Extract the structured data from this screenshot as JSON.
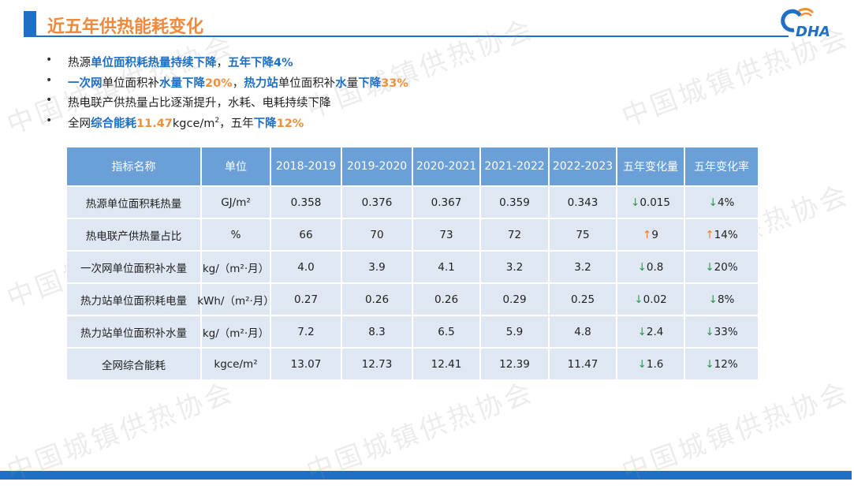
{
  "header": {
    "title": "近五年供热能耗变化",
    "logo": "DHA"
  },
  "watermark": "中国城镇供热协会",
  "bullets": [
    [
      {
        "text": "热源",
        "color": "#222"
      },
      {
        "text": "单位面积耗热量持续下降",
        "color": "#1f6fc5",
        "bold": true
      },
      {
        "text": "，",
        "color": "#222"
      },
      {
        "text": "五年下降4%",
        "color": "#1f6fc5",
        "bold": true
      }
    ],
    [
      {
        "text": "一次网",
        "color": "#1f6fc5",
        "bold": true
      },
      {
        "text": "单位面积补",
        "color": "#222"
      },
      {
        "text": "水量",
        "color": "#1f6fc5",
        "bold": true
      },
      {
        "text": "下降",
        "color": "#1f6fc5",
        "bold": true
      },
      {
        "text": "20%",
        "color": "#f0903a",
        "bold": true
      },
      {
        "text": "，",
        "color": "#222"
      },
      {
        "text": "热力站",
        "color": "#1f6fc5",
        "bold": true
      },
      {
        "text": "单位面积补",
        "color": "#222"
      },
      {
        "text": "水",
        "color": "#1f6fc5",
        "bold": true
      },
      {
        "text": "量",
        "color": "#222"
      },
      {
        "text": "下降",
        "color": "#1f6fc5",
        "bold": true
      },
      {
        "text": "33%",
        "color": "#f0903a",
        "bold": true
      }
    ],
    [
      {
        "text": "热电联产供热量占比逐渐提升，水耗、电耗持续下降",
        "color": "#222"
      }
    ],
    [
      {
        "text": "全网",
        "color": "#222"
      },
      {
        "text": "综合能耗",
        "color": "#1f6fc5",
        "bold": true
      },
      {
        "text": "11.47",
        "color": "#f0903a",
        "bold": true
      },
      {
        "text": "kgce/m",
        "color": "#222"
      },
      {
        "text": "2",
        "color": "#222",
        "sup": true
      },
      {
        "text": "，五年",
        "color": "#222"
      },
      {
        "text": "下降",
        "color": "#1f6fc5",
        "bold": true
      },
      {
        "text": "12%",
        "color": "#f0903a",
        "bold": true
      }
    ]
  ],
  "table": {
    "header": [
      "指标名称",
      "单位",
      "2018-2019",
      "2019-2020",
      "2020-2021",
      "2021-2022",
      "2022-2023",
      "五年变化量",
      "五年变化率"
    ],
    "rows": [
      [
        "热源单位面积耗热量",
        "GJ/m²",
        "0.358",
        "0.376",
        "0.367",
        "0.359",
        "0.343",
        "↓0.015",
        "↓4%"
      ],
      [
        "热电联产供热量占比",
        "%",
        "66",
        "70",
        "73",
        "72",
        "75",
        "↑9",
        "↑14%"
      ],
      [
        "一次网单位面积补水量",
        "kg/（m²·月）",
        "4.0",
        "3.9",
        "4.1",
        "3.2",
        "3.2",
        "↓0.8",
        "↓20%"
      ],
      [
        "热力站单位面积耗电量",
        "kWh/（m²·月）",
        "0.27",
        "0.26",
        "0.26",
        "0.29",
        "0.25",
        "↓0.02",
        "↓8%"
      ],
      [
        "热力站单位面积补水量",
        "kg/（m²·月）",
        "7.2",
        "8.3",
        "6.5",
        "5.9",
        "4.8",
        "↓2.4",
        "↓33%"
      ],
      [
        "全网综合能耗",
        "kgce/m²",
        "13.07",
        "12.73",
        "12.41",
        "12.39",
        "11.47",
        "↓1.6",
        "↓12%"
      ]
    ]
  }
}
